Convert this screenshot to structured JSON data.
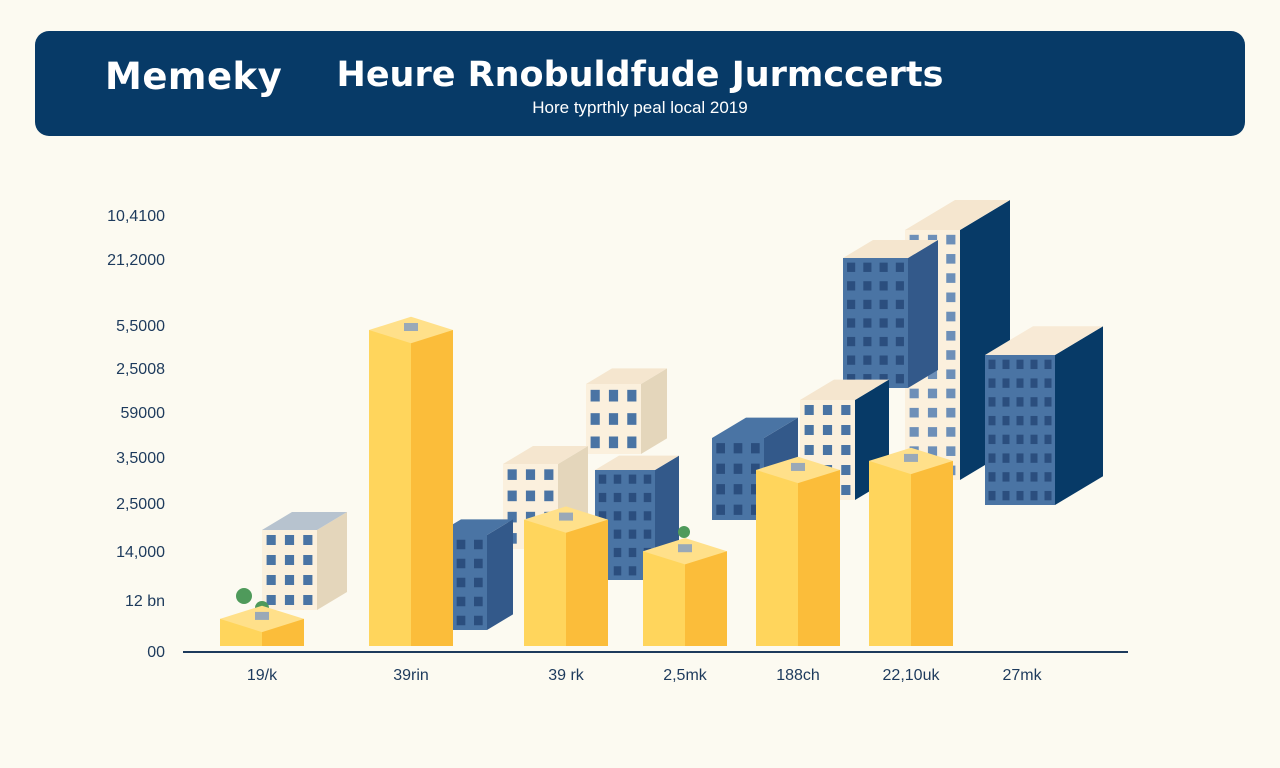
{
  "header": {
    "brand": "Memeky",
    "title": "Heure Rnobuldfude Jurmccerts",
    "subtitle": "Hore typrthly peal local 2019"
  },
  "colors": {
    "banner": "#073a67",
    "bar_yellow": "#ffd55c",
    "bar_yellow_side": "#fbbd3a",
    "building_blue": "#4a74a4",
    "building_cream": "#fbf0dd",
    "axis": "#1d3a5c",
    "background": "#fcfaf1"
  },
  "chart_data": {
    "type": "bar",
    "y_tick_labels": [
      "10,4100",
      "21,2000",
      "5,5000",
      "2,5008",
      "59000",
      "3,5000",
      "2,5000",
      "14,000",
      "12 bn",
      "00"
    ],
    "categories": [
      "19/k",
      "39rin",
      "39 rk",
      "2,5mk",
      "188ch",
      "22,10uk",
      "27mk"
    ],
    "values": [
      0.6,
      7.0,
      2.8,
      2.1,
      3.9,
      4.1,
      null
    ],
    "value_units": "approximate tick index (0 = \"00\", 9 = \"10,4100\")",
    "decorations": "isometric building illustrations behind and beside the bars",
    "grid": false,
    "legend": "none"
  }
}
